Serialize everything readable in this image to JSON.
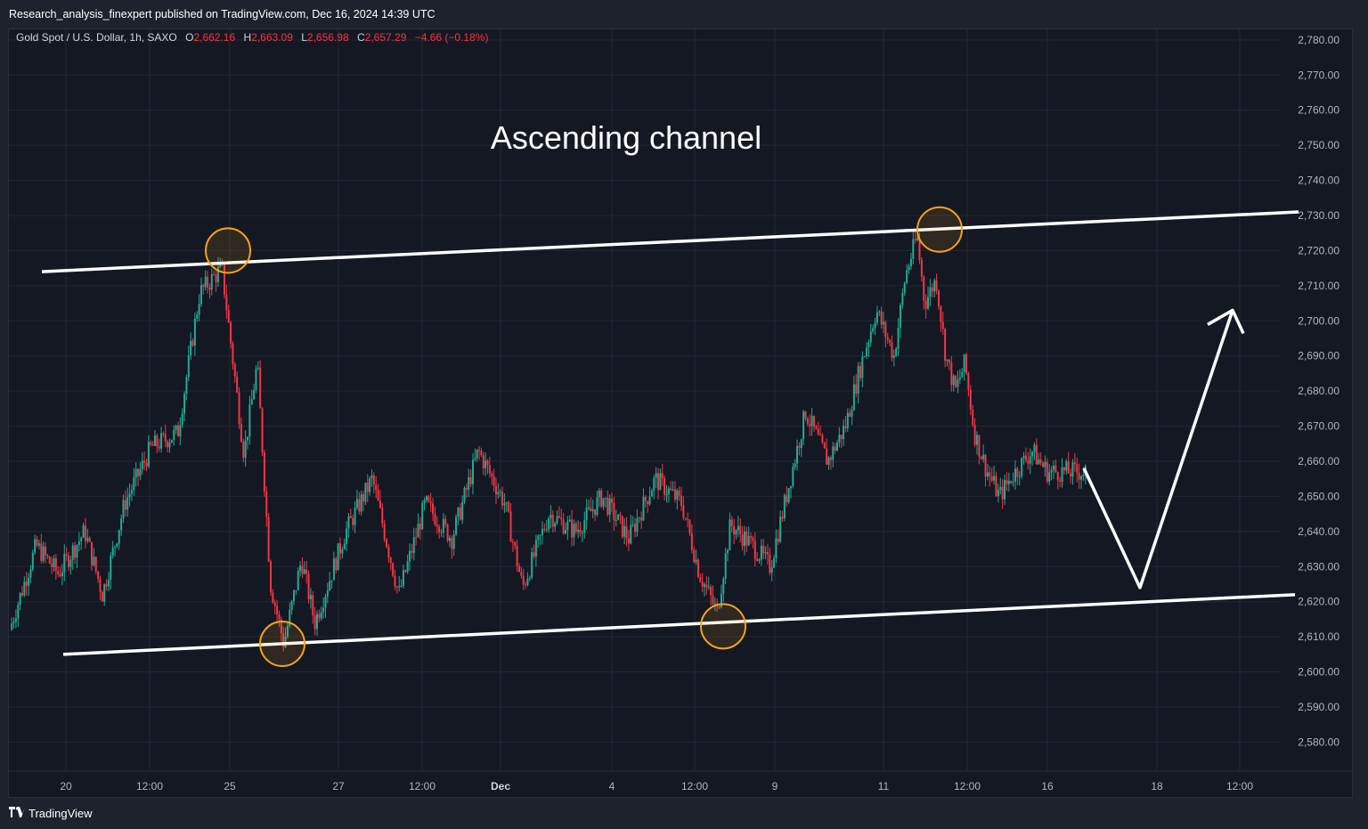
{
  "header": {
    "publish_line": "Research_analysis_finexpert published on TradingView.com, Dec 16, 2024 14:39 UTC"
  },
  "legend": {
    "symbol": "Gold Spot / U.S. Dollar, 1h, SAXO",
    "o_label": "O",
    "o_value": "2,662.16",
    "h_label": "H",
    "h_value": "2,663.09",
    "l_label": "L",
    "l_value": "2,656.98",
    "c_label": "C",
    "c_value": "2,657.29",
    "change": "−4.66 (−0.18%)"
  },
  "annotation": {
    "title": "Ascending channel"
  },
  "footer": {
    "brand": "TradingView",
    "logo_icon": "tradingview-logo-icon"
  },
  "colors": {
    "background": "#141823",
    "up": "#22ab94",
    "down": "#f23645",
    "channel": "#ffffff",
    "circle": "#f7a21b",
    "text": "#d1d4dc"
  },
  "chart_data": {
    "type": "candlestick",
    "symbol": "Gold Spot / U.S. Dollar",
    "interval": "1h",
    "ylim": [
      2572,
      2783
    ],
    "y_ticks": [
      "2,780.00",
      "2,770.00",
      "2,760.00",
      "2,750.00",
      "2,740.00",
      "2,730.00",
      "2,720.00",
      "2,710.00",
      "2,700.00",
      "2,690.00",
      "2,680.00",
      "2,670.00",
      "2,660.00",
      "2,650.00",
      "2,640.00",
      "2,630.00",
      "2,620.00",
      "2,610.00",
      "2,600.00",
      "2,590.00",
      "2,580.00"
    ],
    "x_ticks": [
      "20",
      "12:00",
      "25",
      "27",
      "12:00",
      "Dec",
      "4",
      "12:00",
      "9",
      "11",
      "12:00",
      "16",
      "18",
      "12:00"
    ],
    "price_path": [
      {
        "t": 0,
        "p": 2612
      },
      {
        "t": 0.03,
        "p": 2636
      },
      {
        "t": 0.055,
        "p": 2628
      },
      {
        "t": 0.085,
        "p": 2640
      },
      {
        "t": 0.105,
        "p": 2622
      },
      {
        "t": 0.13,
        "p": 2648
      },
      {
        "t": 0.16,
        "p": 2664
      },
      {
        "t": 0.19,
        "p": 2668
      },
      {
        "t": 0.215,
        "p": 2708
      },
      {
        "t": 0.24,
        "p": 2715
      },
      {
        "t": 0.265,
        "p": 2662
      },
      {
        "t": 0.28,
        "p": 2688
      },
      {
        "t": 0.295,
        "p": 2625
      },
      {
        "t": 0.31,
        "p": 2608
      },
      {
        "t": 0.33,
        "p": 2632
      },
      {
        "t": 0.345,
        "p": 2614
      },
      {
        "t": 0.38,
        "p": 2640
      },
      {
        "t": 0.41,
        "p": 2655
      },
      {
        "t": 0.44,
        "p": 2622
      },
      {
        "t": 0.47,
        "p": 2648
      },
      {
        "t": 0.5,
        "p": 2638
      },
      {
        "t": 0.53,
        "p": 2663
      },
      {
        "t": 0.56,
        "p": 2648
      },
      {
        "t": 0.58,
        "p": 2624
      },
      {
        "t": 0.61,
        "p": 2645
      },
      {
        "t": 0.64,
        "p": 2640
      },
      {
        "t": 0.67,
        "p": 2650
      },
      {
        "t": 0.7,
        "p": 2638
      },
      {
        "t": 0.73,
        "p": 2655
      },
      {
        "t": 0.76,
        "p": 2648
      },
      {
        "t": 0.78,
        "p": 2628
      },
      {
        "t": 0.8,
        "p": 2617
      },
      {
        "t": 0.815,
        "p": 2642
      },
      {
        "t": 0.84,
        "p": 2636
      },
      {
        "t": 0.86,
        "p": 2630
      },
      {
        "t": 0.88,
        "p": 2652
      },
      {
        "t": 0.9,
        "p": 2674
      },
      {
        "t": 0.925,
        "p": 2660
      },
      {
        "t": 0.945,
        "p": 2670
      },
      {
        "t": 0.96,
        "p": 2685
      },
      {
        "t": 0.98,
        "p": 2703
      },
      {
        "t": 1,
        "p": 2690
      }
    ],
    "price_path_2": [
      {
        "t": 0,
        "p": 2690
      },
      {
        "t": 0.06,
        "p": 2713
      },
      {
        "t": 0.12,
        "p": 2724
      },
      {
        "t": 0.16,
        "p": 2705
      },
      {
        "t": 0.22,
        "p": 2712
      },
      {
        "t": 0.27,
        "p": 2690
      },
      {
        "t": 0.32,
        "p": 2680
      },
      {
        "t": 0.37,
        "p": 2688
      },
      {
        "t": 0.42,
        "p": 2668
      },
      {
        "t": 0.48,
        "p": 2658
      },
      {
        "t": 0.55,
        "p": 2650
      },
      {
        "t": 0.62,
        "p": 2656
      },
      {
        "t": 0.72,
        "p": 2663
      },
      {
        "t": 0.8,
        "p": 2657
      }
    ],
    "channel_upper": [
      {
        "x": "2024-11-18 12:00",
        "y": 2714
      },
      {
        "x": "2024-12-19 16:00",
        "y": 2731
      }
    ],
    "channel_lower": [
      {
        "x": "2024-11-19 00:00",
        "y": 2605
      },
      {
        "x": "2024-12-19 16:00",
        "y": 2622
      }
    ],
    "touch_points": [
      {
        "label": "top-1",
        "y": 2720
      },
      {
        "label": "bottom-1",
        "y": 2608
      },
      {
        "label": "bottom-2",
        "y": 2613
      },
      {
        "label": "top-2",
        "y": 2726
      }
    ],
    "projection": [
      {
        "step": "start",
        "y": 2658
      },
      {
        "step": "low",
        "y": 2624
      },
      {
        "step": "target",
        "y": 2703
      }
    ]
  }
}
